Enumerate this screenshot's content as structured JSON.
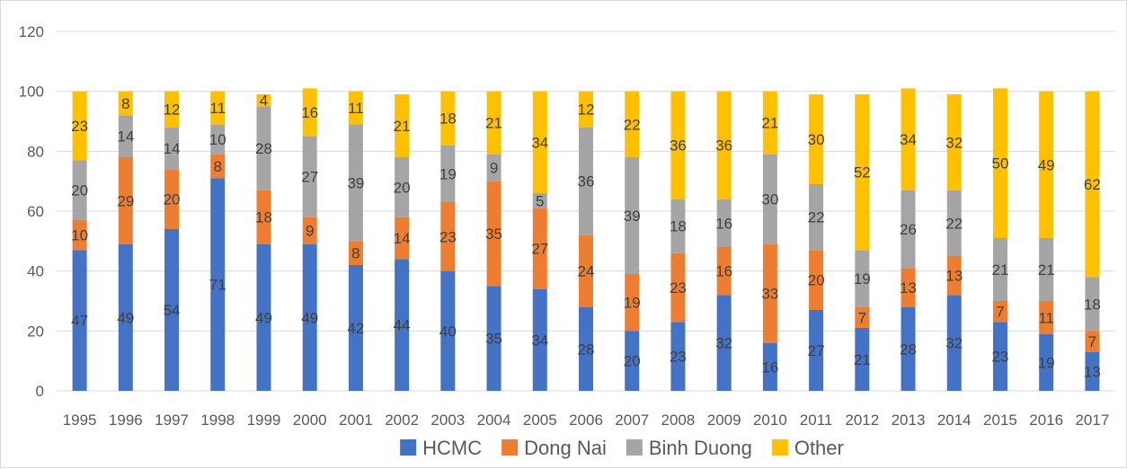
{
  "chart_data": {
    "type": "bar",
    "stacked": true,
    "title": "",
    "xlabel": "",
    "ylabel": "",
    "ylim": [
      0,
      120
    ],
    "yticks": [
      0,
      20,
      40,
      60,
      80,
      100,
      120
    ],
    "grid": true,
    "legend": "bottom",
    "categories": [
      "1995",
      "1996",
      "1997",
      "1998",
      "1999",
      "2000",
      "2001",
      "2002",
      "2003",
      "2004",
      "2005",
      "2006",
      "2007",
      "2008",
      "2009",
      "2010",
      "2011",
      "2012",
      "2013",
      "2014",
      "2015",
      "2016",
      "2017"
    ],
    "series": [
      {
        "name": "HCMC",
        "color": "#4472c4",
        "values": [
          47,
          49,
          54,
          71,
          49,
          49,
          42,
          44,
          40,
          35,
          34,
          28,
          20,
          23,
          32,
          16,
          27,
          21,
          28,
          32,
          23,
          19,
          13
        ]
      },
      {
        "name": "Dong Nai",
        "color": "#ed7d31",
        "values": [
          10,
          29,
          20,
          8,
          18,
          9,
          8,
          14,
          23,
          35,
          27,
          24,
          19,
          23,
          16,
          33,
          20,
          7,
          13,
          13,
          7,
          11,
          7
        ]
      },
      {
        "name": "Binh Duong",
        "color": "#a5a5a5",
        "values": [
          20,
          14,
          14,
          10,
          28,
          27,
          39,
          20,
          19,
          9,
          5,
          36,
          39,
          18,
          16,
          30,
          22,
          19,
          26,
          22,
          21,
          21,
          18
        ]
      },
      {
        "name": "Other",
        "color": "#ffc000",
        "values": [
          23,
          8,
          12,
          11,
          4,
          16,
          11,
          21,
          18,
          21,
          34,
          12,
          22,
          36,
          36,
          21,
          30,
          52,
          34,
          32,
          50,
          49,
          62
        ]
      }
    ]
  }
}
